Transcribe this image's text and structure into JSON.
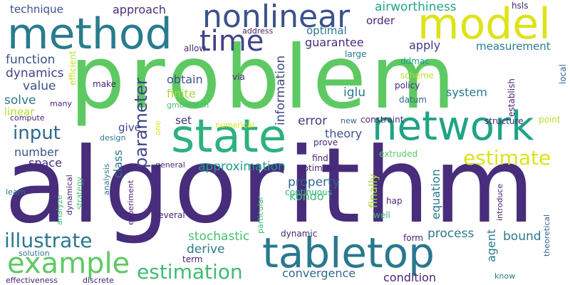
{
  "words": [
    {
      "text": "problem",
      "color": "#5ec962",
      "rotated": false
    },
    {
      "text": "algorithm",
      "color": "#472d7b",
      "rotated": false
    },
    {
      "text": "tabletop",
      "color": "#2a788e",
      "rotated": false
    },
    {
      "text": "state",
      "color": "#2db27d",
      "rotated": false
    },
    {
      "text": "network",
      "color": "#20a386",
      "rotated": false
    },
    {
      "text": "method",
      "color": "#287c8e",
      "rotated": false
    },
    {
      "text": "model",
      "color": "#dde318",
      "rotated": false
    },
    {
      "text": "nonlinear",
      "color": "#3b528b",
      "rotated": false
    },
    {
      "text": "time",
      "color": "#414487",
      "rotated": false
    },
    {
      "text": "example",
      "color": "#5ec962",
      "rotated": false
    },
    {
      "text": "illustrate",
      "color": "#2a788e",
      "rotated": false
    },
    {
      "text": "estimation",
      "color": "#3fbc73",
      "rotated": false
    },
    {
      "text": "estimate",
      "color": "#dde318",
      "rotated": false
    },
    {
      "text": "input",
      "color": "#31688e",
      "rotated": false
    },
    {
      "text": "parameter",
      "color": "#414487",
      "rotated": true
    },
    {
      "text": "airworthiness",
      "color": "#20a386",
      "rotated": false
    },
    {
      "text": "approach",
      "color": "#472d7b",
      "rotated": false
    },
    {
      "text": "technique",
      "color": "#3b528b",
      "rotated": false
    },
    {
      "text": "function",
      "color": "#3b528b",
      "rotated": false
    },
    {
      "text": "dynamics",
      "color": "#414487",
      "rotated": false
    },
    {
      "text": "value",
      "color": "#3b528b",
      "rotated": false
    },
    {
      "text": "solve",
      "color": "#2a788e",
      "rotated": false
    },
    {
      "text": "linear",
      "color": "#b5de2b",
      "rotated": false
    },
    {
      "text": "number",
      "color": "#3b528b",
      "rotated": false
    },
    {
      "text": "space",
      "color": "#472d7b",
      "rotated": false
    },
    {
      "text": "optimal",
      "color": "#2a788e",
      "rotated": false
    },
    {
      "text": "order",
      "color": "#482576",
      "rotated": false
    },
    {
      "text": "guarantee",
      "color": "#472d7b",
      "rotated": false
    },
    {
      "text": "apply",
      "color": "#443983",
      "rotated": false
    },
    {
      "text": "measurement",
      "color": "#287c8e",
      "rotated": false
    },
    {
      "text": "information",
      "color": "#3e4a89",
      "rotated": true
    },
    {
      "text": "obtain",
      "color": "#3b528b",
      "rotated": false
    },
    {
      "text": "finite",
      "color": "#a5db36",
      "rotated": false
    },
    {
      "text": "iglu",
      "color": "#2a788e",
      "rotated": false
    },
    {
      "text": "system",
      "color": "#2a788e",
      "rotated": false
    },
    {
      "text": "set",
      "color": "#472d7b",
      "rotated": false
    },
    {
      "text": "give",
      "color": "#3e4a89",
      "rotated": false
    },
    {
      "text": "error",
      "color": "#443983",
      "rotated": false
    },
    {
      "text": "theory",
      "color": "#3b528b",
      "rotated": false
    },
    {
      "text": "class",
      "color": "#2a788e",
      "rotated": true
    },
    {
      "text": "approximation",
      "color": "#1f9a8a",
      "rotated": false
    },
    {
      "text": "property",
      "color": "#31688e",
      "rotated": false
    },
    {
      "text": "kondo",
      "color": "#3fbc73",
      "rotated": false
    },
    {
      "text": "stochastic",
      "color": "#44bf70",
      "rotated": false
    },
    {
      "text": "derive",
      "color": "#2a788e",
      "rotated": false
    },
    {
      "text": "convergence",
      "color": "#31688e",
      "rotated": false
    },
    {
      "text": "condition",
      "color": "#482576",
      "rotated": false
    },
    {
      "text": "process",
      "color": "#2a788e",
      "rotated": false
    },
    {
      "text": "bound",
      "color": "#2a788e",
      "rotated": false
    },
    {
      "text": "agent",
      "color": "#2a788e",
      "rotated": true
    },
    {
      "text": "equation",
      "color": "#2a788e",
      "rotated": true
    },
    {
      "text": "finally",
      "color": "#a5db36",
      "rotated": true
    },
    {
      "text": "hsls",
      "color": "#482576",
      "rotated": false
    },
    {
      "text": "local",
      "color": "#31688e",
      "rotated": true
    },
    {
      "text": "address",
      "color": "#482576",
      "rotated": false
    },
    {
      "text": "allow",
      "color": "#482576",
      "rotated": false
    },
    {
      "text": "large",
      "color": "#2a788e",
      "rotated": false
    },
    {
      "text": "ddmac",
      "color": "#1f9a8a",
      "rotated": false
    },
    {
      "text": "scheme",
      "color": "#c2df23",
      "rotated": false
    },
    {
      "text": "policy",
      "color": "#482576",
      "rotated": false
    },
    {
      "text": "establish",
      "color": "#482576",
      "rotated": true
    },
    {
      "text": "datum",
      "color": "#31688e",
      "rotated": false
    },
    {
      "text": "efficient",
      "color": "#c2df23",
      "rotated": true
    },
    {
      "text": "make",
      "color": "#482576",
      "rotated": false
    },
    {
      "text": "via",
      "color": "#482576",
      "rotated": false
    },
    {
      "text": "gmomatch",
      "color": "#3fbc73",
      "rotated": false
    },
    {
      "text": "many",
      "color": "#482576",
      "rotated": false
    },
    {
      "text": "compute",
      "color": "#482576",
      "rotated": false
    },
    {
      "text": "numerical",
      "color": "#dde318",
      "rotated": false
    },
    {
      "text": "new",
      "color": "#31688e",
      "rotated": false
    },
    {
      "text": "constraint",
      "color": "#482576",
      "rotated": false
    },
    {
      "text": "structure",
      "color": "#482576",
      "rotated": false
    },
    {
      "text": "point",
      "color": "#b5de2b",
      "rotated": false
    },
    {
      "text": "design",
      "color": "#2a788e",
      "rotated": false
    },
    {
      "text": "one",
      "color": "#dde318",
      "rotated": true
    },
    {
      "text": "prove",
      "color": "#482576",
      "rotated": false
    },
    {
      "text": "find",
      "color": "#482576",
      "rotated": false
    },
    {
      "text": "extruded",
      "color": "#5ec962",
      "rotated": false
    },
    {
      "text": "optimization",
      "color": "#482576",
      "rotated": false
    },
    {
      "text": "general",
      "color": "#482576",
      "rotated": false
    },
    {
      "text": "analysis",
      "color": "#2a788e",
      "rotated": true
    },
    {
      "text": "strategy",
      "color": "#3fbc73",
      "rotated": true
    },
    {
      "text": "dynamical",
      "color": "#482576",
      "rotated": true
    },
    {
      "text": "learn",
      "color": "#2a788e",
      "rotated": false
    },
    {
      "text": "experiment",
      "color": "#482576",
      "rotated": true
    },
    {
      "text": "analyze",
      "color": "#3fbc73",
      "rotated": true
    },
    {
      "text": "continuous",
      "color": "#2db27d",
      "rotated": false
    },
    {
      "text": "particular",
      "color": "#3fbc73",
      "rotated": true
    },
    {
      "text": "hap",
      "color": "#482576",
      "rotated": false
    },
    {
      "text": "well",
      "color": "#3fbc73",
      "rotated": false
    },
    {
      "text": "introduce",
      "color": "#482576",
      "rotated": true
    },
    {
      "text": "several",
      "color": "#482576",
      "rotated": false
    },
    {
      "text": "dynamic",
      "color": "#482576",
      "rotated": false
    },
    {
      "text": "form",
      "color": "#482576",
      "rotated": false
    },
    {
      "text": "theoretical",
      "color": "#31688e",
      "rotated": true
    },
    {
      "text": "solution",
      "color": "#2a788e",
      "rotated": false
    },
    {
      "text": "term",
      "color": "#482576",
      "rotated": false
    },
    {
      "text": "know",
      "color": "#2a788e",
      "rotated": false
    },
    {
      "text": "effectiveness",
      "color": "#482576",
      "rotated": false
    },
    {
      "text": "discrete",
      "color": "#482576",
      "rotated": false
    }
  ]
}
